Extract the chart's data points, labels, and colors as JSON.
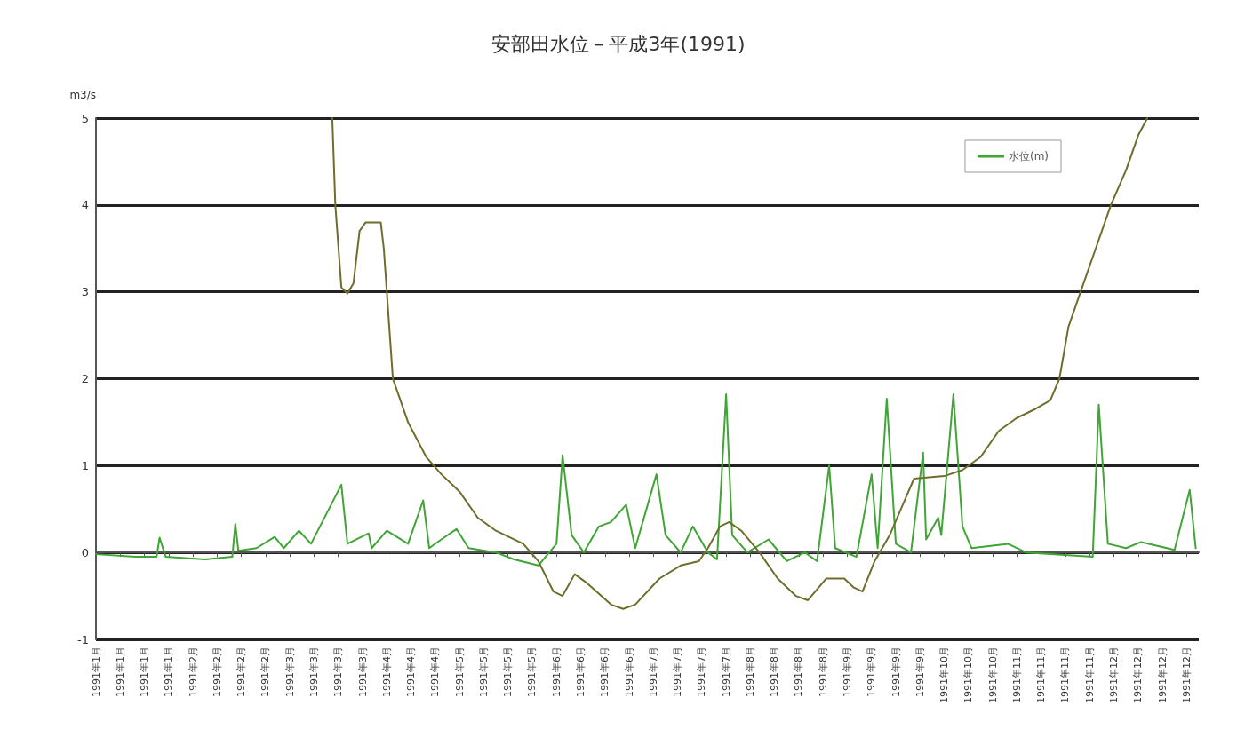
{
  "chart_data": {
    "type": "line",
    "title": "安部田水位－平成3年(1991)",
    "ylabel": "m3/s",
    "xlim": [
      "1991-01-01",
      "1991-12-31"
    ],
    "xticks": [
      {
        "value": "1991-01-01",
        "label": "1991年1月"
      },
      {
        "value": "1991-01-09",
        "label": "1991年1月"
      },
      {
        "value": "1991-01-17",
        "label": "1991年1月"
      },
      {
        "value": "1991-01-25",
        "label": "1991年1月"
      },
      {
        "value": "1991-02-02",
        "label": "1991年2月"
      },
      {
        "value": "1991-02-10",
        "label": "1991年2月"
      },
      {
        "value": "1991-02-18",
        "label": "1991年2月"
      },
      {
        "value": "1991-02-26",
        "label": "1991年2月"
      },
      {
        "value": "1991-03-06",
        "label": "1991年3月"
      },
      {
        "value": "1991-03-14",
        "label": "1991年3月"
      },
      {
        "value": "1991-03-22",
        "label": "1991年3月"
      },
      {
        "value": "1991-03-30",
        "label": "1991年3月"
      },
      {
        "value": "1991-04-07",
        "label": "1991年4月"
      },
      {
        "value": "1991-04-15",
        "label": "1991年4月"
      },
      {
        "value": "1991-04-23",
        "label": "1991年4月"
      },
      {
        "value": "1991-05-01",
        "label": "1991年5月"
      },
      {
        "value": "1991-05-09",
        "label": "1991年5月"
      },
      {
        "value": "1991-05-17",
        "label": "1991年5月"
      },
      {
        "value": "1991-05-25",
        "label": "1991年5月"
      },
      {
        "value": "1991-06-02",
        "label": "1991年6月"
      },
      {
        "value": "1991-06-10",
        "label": "1991年6月"
      },
      {
        "value": "1991-06-18",
        "label": "1991年6月"
      },
      {
        "value": "1991-06-26",
        "label": "1991年6月"
      },
      {
        "value": "1991-07-04",
        "label": "1991年7月"
      },
      {
        "value": "1991-07-12",
        "label": "1991年7月"
      },
      {
        "value": "1991-07-20",
        "label": "1991年7月"
      },
      {
        "value": "1991-07-28",
        "label": "1991年7月"
      },
      {
        "value": "1991-08-05",
        "label": "1991年8月"
      },
      {
        "value": "1991-08-13",
        "label": "1991年8月"
      },
      {
        "value": "1991-08-21",
        "label": "1991年8月"
      },
      {
        "value": "1991-08-29",
        "label": "1991年8月"
      },
      {
        "value": "1991-09-06",
        "label": "1991年9月"
      },
      {
        "value": "1991-09-14",
        "label": "1991年9月"
      },
      {
        "value": "1991-09-22",
        "label": "1991年9月"
      },
      {
        "value": "1991-09-30",
        "label": "1991年9月"
      },
      {
        "value": "1991-10-08",
        "label": "1991年10月"
      },
      {
        "value": "1991-10-16",
        "label": "1991年10月"
      },
      {
        "value": "1991-10-24",
        "label": "1991年10月"
      },
      {
        "value": "1991-11-01",
        "label": "1991年11月"
      },
      {
        "value": "1991-11-09",
        "label": "1991年11月"
      },
      {
        "value": "1991-11-17",
        "label": "1991年11月"
      },
      {
        "value": "1991-11-25",
        "label": "1991年11月"
      },
      {
        "value": "1991-12-03",
        "label": "1991年12月"
      },
      {
        "value": "1991-12-11",
        "label": "1991年12月"
      },
      {
        "value": "1991-12-19",
        "label": "1991年12月"
      },
      {
        "value": "1991-12-27",
        "label": "1991年12月"
      }
    ],
    "ylim": [
      -1,
      5
    ],
    "yticks": [
      -1,
      0,
      1,
      2,
      3,
      4,
      5
    ],
    "grid": "y",
    "legend": "top right",
    "marker": "none",
    "line_style": "solid",
    "series": [
      {
        "name": "水位(m)",
        "color": "#3fa535",
        "x": [
          "1991-01-01",
          "1991-01-14",
          "1991-01-21",
          "1991-01-22",
          "1991-01-24",
          "1991-02-06",
          "1991-02-15",
          "1991-02-16",
          "1991-02-17",
          "1991-02-23",
          "1991-03-01",
          "1991-03-04",
          "1991-03-09",
          "1991-03-13",
          "1991-03-23",
          "1991-03-25",
          "1991-04-01",
          "1991-04-02",
          "1991-04-07",
          "1991-04-14",
          "1991-04-19",
          "1991-04-21",
          "1991-04-25",
          "1991-04-30",
          "1991-05-04",
          "1991-05-13",
          "1991-05-19",
          "1991-05-27",
          "1991-06-02",
          "1991-06-04",
          "1991-06-07",
          "1991-06-11",
          "1991-06-16",
          "1991-06-20",
          "1991-06-25",
          "1991-06-28",
          "1991-07-05",
          "1991-07-08",
          "1991-07-13",
          "1991-07-17",
          "1991-07-22",
          "1991-07-25",
          "1991-07-28",
          "1991-07-30",
          "1991-08-04",
          "1991-08-11",
          "1991-08-17",
          "1991-08-23",
          "1991-08-27",
          "1991-08-31",
          "1991-09-02",
          "1991-09-09",
          "1991-09-14",
          "1991-09-16",
          "1991-09-19",
          "1991-09-22",
          "1991-09-27",
          "1991-10-01",
          "1991-10-02",
          "1991-10-06",
          "1991-10-07",
          "1991-10-11",
          "1991-10-14",
          "1991-10-17",
          "1991-10-29",
          "1991-11-04",
          "1991-11-26",
          "1991-11-28",
          "1991-12-01",
          "1991-12-07",
          "1991-12-12",
          "1991-12-23",
          "1991-12-28",
          "1991-12-30"
        ],
        "values": [
          -0.02,
          -0.05,
          -0.05,
          0.17,
          -0.05,
          -0.08,
          -0.05,
          0.33,
          0.02,
          0.05,
          0.18,
          0.05,
          0.25,
          0.1,
          0.78,
          0.1,
          0.22,
          0.05,
          0.25,
          0.1,
          0.6,
          0.05,
          0.15,
          0.27,
          0.05,
          0.0,
          -0.08,
          -0.15,
          0.1,
          1.12,
          0.2,
          0.0,
          0.3,
          0.35,
          0.55,
          0.05,
          0.9,
          0.2,
          0.0,
          0.3,
          0.0,
          -0.08,
          1.82,
          0.2,
          0.0,
          0.15,
          -0.1,
          0.0,
          -0.1,
          1.0,
          0.05,
          -0.05,
          0.9,
          0.05,
          1.77,
          0.1,
          0.0,
          1.15,
          0.15,
          0.4,
          0.2,
          1.82,
          0.3,
          0.05,
          0.1,
          0.0,
          -0.05,
          1.7,
          0.1,
          0.05,
          0.12,
          0.03,
          0.72,
          0.05
        ]
      },
      {
        "color": "#6e6e2c",
        "x": [
          "1991-03-20",
          "1991-03-21",
          "1991-03-23",
          "1991-03-25",
          "1991-03-27",
          "1991-03-29",
          "1991-03-31",
          "1991-04-05",
          "1991-04-06",
          "1991-04-08",
          "1991-04-09",
          "1991-04-14",
          "1991-04-20",
          "1991-04-25",
          "1991-05-01",
          "1991-05-07",
          "1991-05-13",
          "1991-05-22",
          "1991-05-27",
          "1991-06-01",
          "1991-06-04",
          "1991-06-08",
          "1991-06-12",
          "1991-06-20",
          "1991-06-24",
          "1991-06-28",
          "1991-07-06",
          "1991-07-13",
          "1991-07-19",
          "1991-07-22",
          "1991-07-26",
          "1991-07-29",
          "1991-08-02",
          "1991-08-08",
          "1991-08-14",
          "1991-08-20",
          "1991-08-24",
          "1991-08-30",
          "1991-09-05",
          "1991-09-08",
          "1991-09-11",
          "1991-09-15",
          "1991-09-20",
          "1991-09-28",
          "1991-10-08",
          "1991-10-14",
          "1991-10-20",
          "1991-10-26",
          "1991-11-01",
          "1991-11-07",
          "1991-11-12",
          "1991-11-15",
          "1991-11-18",
          "1991-11-22",
          "1991-11-27",
          "1991-12-02",
          "1991-12-07",
          "1991-12-11",
          "1991-12-14"
        ],
        "values": [
          5.0,
          4.0,
          3.05,
          2.98,
          3.1,
          3.7,
          3.8,
          3.8,
          3.5,
          2.5,
          2.0,
          1.5,
          1.1,
          0.9,
          0.7,
          0.4,
          0.25,
          0.1,
          -0.1,
          -0.45,
          -0.5,
          -0.25,
          -0.35,
          -0.6,
          -0.65,
          -0.6,
          -0.3,
          -0.15,
          -0.1,
          0.05,
          0.3,
          0.35,
          0.25,
          0.0,
          -0.3,
          -0.5,
          -0.55,
          -0.3,
          -0.3,
          -0.4,
          -0.45,
          -0.1,
          0.2,
          0.85,
          0.88,
          0.95,
          1.1,
          1.4,
          1.55,
          1.65,
          1.75,
          2.0,
          2.6,
          3.0,
          3.5,
          4.0,
          4.4,
          4.8,
          5.0
        ]
      }
    ]
  }
}
